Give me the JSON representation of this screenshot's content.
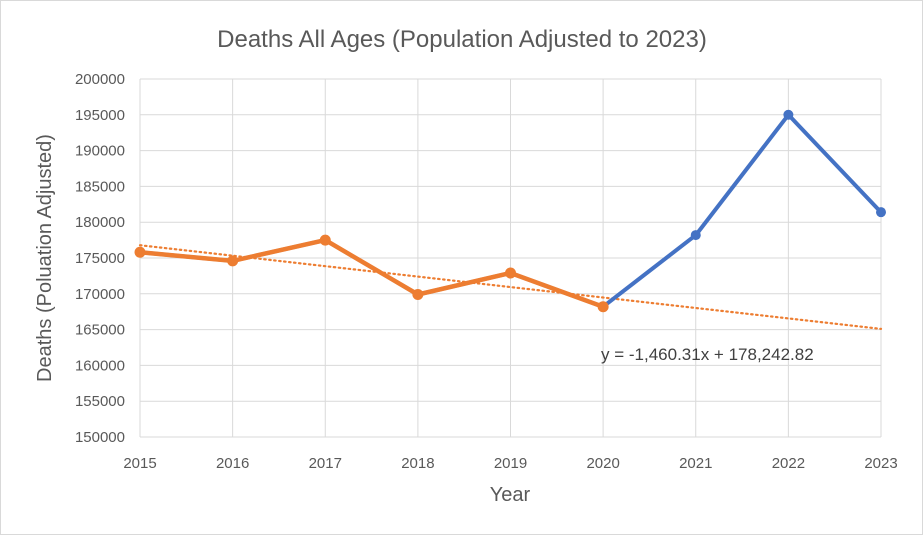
{
  "chart_data": {
    "type": "line",
    "title": "Deaths All Ages (Population Adjusted to 2023)",
    "xlabel": "Year",
    "ylabel": "Deaths (Poluation Adjusted)",
    "x": [
      2015,
      2016,
      2017,
      2018,
      2019,
      2020,
      2021,
      2022,
      2023
    ],
    "x_tick_labels": [
      "2015",
      "2016",
      "2017",
      "2018",
      "2019",
      "2020",
      "2021",
      "2022",
      "2023"
    ],
    "y_tick_labels": [
      "150000",
      "155000",
      "160000",
      "165000",
      "170000",
      "175000",
      "180000",
      "185000",
      "190000",
      "195000",
      "200000"
    ],
    "ylim": [
      150000,
      200000
    ],
    "grid": true,
    "legend": "none",
    "series": [
      {
        "key": "all",
        "color": "#4472C4",
        "x": [
          2015,
          2016,
          2017,
          2018,
          2019,
          2020,
          2021,
          2022,
          2023
        ],
        "values": [
          175800,
          174600,
          177500,
          169900,
          172900,
          168200,
          178200,
          195000,
          181400
        ]
      },
      {
        "key": "baseline",
        "color": "#ED7D31",
        "x": [
          2015,
          2016,
          2017,
          2018,
          2019,
          2020
        ],
        "values": [
          175800,
          174600,
          177500,
          169900,
          172900,
          168200
        ]
      }
    ],
    "trendline": {
      "style": "dotted",
      "color": "#ED7D31",
      "slope": -1460.31,
      "intercept": 178242.82,
      "x_start": 2015,
      "x_end": 2023,
      "equation_label": "y = -1,460.31x + 178,242.82"
    }
  }
}
